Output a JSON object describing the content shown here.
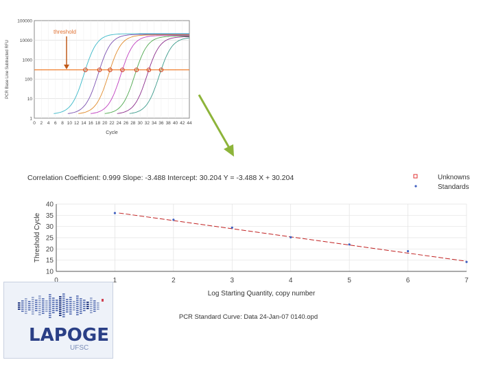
{
  "amp_chart": {
    "threshold_label": "threshold",
    "y_axis_label": "PCR Base Line Subtracted RFU",
    "x_axis_label": "Cycle",
    "y_ticks": [
      "100000",
      "10000",
      "1000",
      "100",
      "10",
      "1"
    ],
    "x_ticks": [
      "0",
      "2",
      "4",
      "6",
      "8",
      "10",
      "12",
      "14",
      "16",
      "18",
      "20",
      "22",
      "24",
      "26",
      "28",
      "30",
      "32",
      "34",
      "36",
      "38",
      "40",
      "42",
      "44"
    ],
    "threshold_rfu": 300,
    "crossing_cycles": [
      14.5,
      18.5,
      21.5,
      25,
      29,
      32.5,
      36
    ],
    "curve_colors": [
      "#3ab8c8",
      "#7a4fb0",
      "#e08a2a",
      "#c040c0",
      "#4fa84f",
      "#8a2a8a",
      "#3a9a8a"
    ],
    "threshold_color": "#f08030"
  },
  "arrow": {
    "color": "#8db43a"
  },
  "std_chart": {
    "stats_text": "Correlation Coefficient: 0.999  Slope: -3.488  Intercept: 30.204  Y = -3.488 X + 30.204",
    "legend": [
      {
        "label": "Unknowns",
        "color": "#e03030"
      },
      {
        "label": "Standards",
        "color": "#4060c0"
      }
    ],
    "y_axis_label": "Threshold Cycle",
    "x_axis_label": "Log Starting Quantity, copy number",
    "footer": "PCR Standard Curve: Data 24-Jan-07 0140.opd",
    "y_ticks": [
      "40",
      "35",
      "30",
      "25",
      "20",
      "15",
      "10"
    ],
    "x_ticks": [
      "0",
      "1",
      "2",
      "3",
      "4",
      "5",
      "6",
      "7"
    ]
  },
  "chart_data": [
    {
      "type": "line",
      "title": "",
      "xlabel": "Cycle",
      "ylabel": "PCR Base Line Subtracted RFU",
      "xlim": [
        0,
        44
      ],
      "ylim": [
        1,
        100000
      ],
      "y_scale": "log",
      "threshold": 300,
      "series_crossings_cycle": [
        14.5,
        18.5,
        21.5,
        25,
        29,
        32.5,
        36
      ]
    },
    {
      "type": "scatter",
      "title": "Correlation Coefficient: 0.999  Slope: -3.488  Intercept: 30.204  Y = -3.488 X + 30.204",
      "xlabel": "Log Starting Quantity, copy number",
      "ylabel": "Threshold Cycle",
      "xlim": [
        0,
        7
      ],
      "ylim": [
        10,
        40
      ],
      "series": [
        {
          "name": "Standards",
          "x": [
            1,
            2,
            3,
            4,
            5,
            6,
            7
          ],
          "y": [
            36,
            33,
            29.5,
            25.2,
            22,
            19,
            14.2
          ]
        }
      ],
      "fit": {
        "slope": -3.488,
        "intercept": 30.204
      }
    }
  ],
  "logo": {
    "name": "LAPOGE",
    "sub": "UFSC"
  }
}
